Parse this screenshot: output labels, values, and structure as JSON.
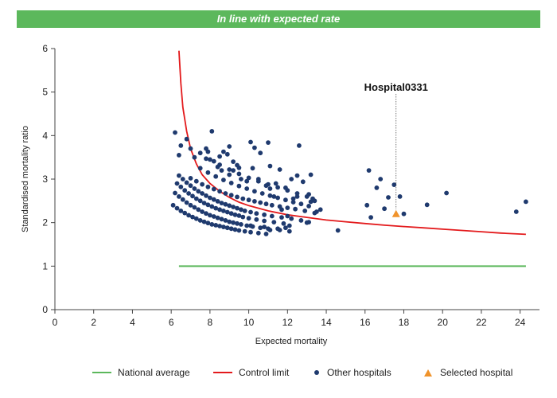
{
  "banner": {
    "text": "In line with expected rate",
    "color": "#5cb85c"
  },
  "chart_data": {
    "type": "scatter",
    "title": "",
    "xlabel": "Expected mortality",
    "ylabel": "Standardised mortality ratio",
    "xlim": [
      0,
      25
    ],
    "ylim": [
      0,
      6
    ],
    "xticks": [
      0,
      2,
      4,
      6,
      8,
      10,
      12,
      14,
      16,
      18,
      20,
      22,
      24
    ],
    "yticks": [
      0,
      1,
      2,
      3,
      4,
      5,
      6
    ],
    "grid": false,
    "legend_position": "bottom",
    "colors": {
      "national_average": "#5cb85c",
      "control_limit": "#e31a1c",
      "other_hospitals": "#1f3a6e",
      "selected_hospital": "#f0932b"
    },
    "national_average": {
      "name": "National average",
      "x": [
        6.4,
        24.3
      ],
      "y": [
        1,
        1
      ]
    },
    "control_limit": {
      "name": "Control limit",
      "points": [
        [
          6.4,
          5.95
        ],
        [
          6.5,
          5.2
        ],
        [
          6.6,
          4.65
        ],
        [
          6.8,
          4.1
        ],
        [
          7.0,
          3.7
        ],
        [
          7.3,
          3.35
        ],
        [
          7.6,
          3.1
        ],
        [
          8.0,
          2.9
        ],
        [
          8.5,
          2.72
        ],
        [
          9.0,
          2.58
        ],
        [
          9.5,
          2.47
        ],
        [
          10.0,
          2.39
        ],
        [
          11.0,
          2.27
        ],
        [
          12.0,
          2.18
        ],
        [
          13.0,
          2.12
        ],
        [
          14.0,
          2.06
        ],
        [
          15.0,
          2.02
        ],
        [
          16.0,
          1.98
        ],
        [
          17.0,
          1.94
        ],
        [
          18.0,
          1.91
        ],
        [
          19.0,
          1.88
        ],
        [
          20.0,
          1.85
        ],
        [
          21.0,
          1.82
        ],
        [
          22.0,
          1.79
        ],
        [
          23.0,
          1.76
        ],
        [
          24.3,
          1.73
        ]
      ]
    },
    "other_hospitals": {
      "name": "Other hospitals",
      "points": [
        [
          6.1,
          2.4
        ],
        [
          6.3,
          2.33
        ],
        [
          6.5,
          2.27
        ],
        [
          6.7,
          2.22
        ],
        [
          6.9,
          2.17
        ],
        [
          7.1,
          2.13
        ],
        [
          7.3,
          2.09
        ],
        [
          7.5,
          2.05
        ],
        [
          7.7,
          2.02
        ],
        [
          7.9,
          1.99
        ],
        [
          8.1,
          1.96
        ],
        [
          8.3,
          1.94
        ],
        [
          8.5,
          1.92
        ],
        [
          8.7,
          1.9
        ],
        [
          8.9,
          1.88
        ],
        [
          9.1,
          1.86
        ],
        [
          9.3,
          1.84
        ],
        [
          9.5,
          1.82
        ],
        [
          9.8,
          1.8
        ],
        [
          10.1,
          1.78
        ],
        [
          10.5,
          1.76
        ],
        [
          10.9,
          1.74
        ],
        [
          6.2,
          2.68
        ],
        [
          6.4,
          2.6
        ],
        [
          6.6,
          2.53
        ],
        [
          6.8,
          2.46
        ],
        [
          7.0,
          2.4
        ],
        [
          7.2,
          2.35
        ],
        [
          7.4,
          2.3
        ],
        [
          7.6,
          2.25
        ],
        [
          7.8,
          2.21
        ],
        [
          8.0,
          2.17
        ],
        [
          8.2,
          2.14
        ],
        [
          8.4,
          2.11
        ],
        [
          8.6,
          2.08
        ],
        [
          8.8,
          2.05
        ],
        [
          9.0,
          2.02
        ],
        [
          9.2,
          2.0
        ],
        [
          9.4,
          1.98
        ],
        [
          9.6,
          1.96
        ],
        [
          9.9,
          1.93
        ],
        [
          10.2,
          1.91
        ],
        [
          10.6,
          1.88
        ],
        [
          11.0,
          1.86
        ],
        [
          11.6,
          1.83
        ],
        [
          12.1,
          1.8
        ],
        [
          6.3,
          2.9
        ],
        [
          6.5,
          2.82
        ],
        [
          6.7,
          2.74
        ],
        [
          6.9,
          2.67
        ],
        [
          7.1,
          2.61
        ],
        [
          7.3,
          2.55
        ],
        [
          7.5,
          2.5
        ],
        [
          7.7,
          2.45
        ],
        [
          7.9,
          2.41
        ],
        [
          8.1,
          2.37
        ],
        [
          8.3,
          2.33
        ],
        [
          8.5,
          2.3
        ],
        [
          8.7,
          2.27
        ],
        [
          8.9,
          2.24
        ],
        [
          9.1,
          2.21
        ],
        [
          9.3,
          2.18
        ],
        [
          9.5,
          2.16
        ],
        [
          9.7,
          2.13
        ],
        [
          10.0,
          2.1
        ],
        [
          10.4,
          2.07
        ],
        [
          10.8,
          2.04
        ],
        [
          11.3,
          2.01
        ],
        [
          11.8,
          1.98
        ],
        [
          6.4,
          3.08
        ],
        [
          6.6,
          3.0
        ],
        [
          6.8,
          2.92
        ],
        [
          7.0,
          2.85
        ],
        [
          7.2,
          2.78
        ],
        [
          7.4,
          2.72
        ],
        [
          7.6,
          2.67
        ],
        [
          7.8,
          2.62
        ],
        [
          8.0,
          2.57
        ],
        [
          8.2,
          2.53
        ],
        [
          8.4,
          2.49
        ],
        [
          8.6,
          2.45
        ],
        [
          8.8,
          2.42
        ],
        [
          9.0,
          2.39
        ],
        [
          9.2,
          2.36
        ],
        [
          9.4,
          2.33
        ],
        [
          9.6,
          2.3
        ],
        [
          9.8,
          2.27
        ],
        [
          10.1,
          2.24
        ],
        [
          10.4,
          2.21
        ],
        [
          10.8,
          2.18
        ],
        [
          11.2,
          2.15
        ],
        [
          11.7,
          2.12
        ],
        [
          12.2,
          2.09
        ],
        [
          12.7,
          2.05
        ],
        [
          13.1,
          2.01
        ],
        [
          7.0,
          3.02
        ],
        [
          7.3,
          2.95
        ],
        [
          7.6,
          2.88
        ],
        [
          7.9,
          2.82
        ],
        [
          8.2,
          2.77
        ],
        [
          8.5,
          2.72
        ],
        [
          8.8,
          2.67
        ],
        [
          9.1,
          2.63
        ],
        [
          9.4,
          2.59
        ],
        [
          9.7,
          2.55
        ],
        [
          10.0,
          2.52
        ],
        [
          10.3,
          2.49
        ],
        [
          10.6,
          2.46
        ],
        [
          10.9,
          2.43
        ],
        [
          11.2,
          2.4
        ],
        [
          11.6,
          2.37
        ],
        [
          12.0,
          2.34
        ],
        [
          12.4,
          2.31
        ],
        [
          12.9,
          2.27
        ],
        [
          13.4,
          2.22
        ],
        [
          7.5,
          3.25
        ],
        [
          7.9,
          3.15
        ],
        [
          8.3,
          3.06
        ],
        [
          8.7,
          2.98
        ],
        [
          9.1,
          2.91
        ],
        [
          9.5,
          2.84
        ],
        [
          9.9,
          2.78
        ],
        [
          10.3,
          2.72
        ],
        [
          10.7,
          2.67
        ],
        [
          11.1,
          2.62
        ],
        [
          11.5,
          2.57
        ],
        [
          11.9,
          2.52
        ],
        [
          12.3,
          2.47
        ],
        [
          12.7,
          2.43
        ],
        [
          13.1,
          2.38
        ],
        [
          8.0,
          3.45
        ],
        [
          8.5,
          3.33
        ],
        [
          9.0,
          3.22
        ],
        [
          9.5,
          3.12
        ],
        [
          10.0,
          3.03
        ],
        [
          10.5,
          2.95
        ],
        [
          11.0,
          2.88
        ],
        [
          11.5,
          2.81
        ],
        [
          12.0,
          2.74
        ],
        [
          12.5,
          2.67
        ],
        [
          13.0,
          2.6
        ],
        [
          13.2,
          2.48
        ],
        [
          6.2,
          4.07
        ],
        [
          6.5,
          3.77
        ],
        [
          6.4,
          3.55
        ],
        [
          6.8,
          3.92
        ],
        [
          7.0,
          3.7
        ],
        [
          7.2,
          3.5
        ],
        [
          7.5,
          3.6
        ],
        [
          7.8,
          3.47
        ],
        [
          7.8,
          3.7
        ],
        [
          7.9,
          3.63
        ],
        [
          8.1,
          4.1
        ],
        [
          8.2,
          3.41
        ],
        [
          8.4,
          3.28
        ],
        [
          8.5,
          3.52
        ],
        [
          8.6,
          3.2
        ],
        [
          8.7,
          3.63
        ],
        [
          8.9,
          3.57
        ],
        [
          9.0,
          3.1
        ],
        [
          9.0,
          3.75
        ],
        [
          9.2,
          3.4
        ],
        [
          9.2,
          3.2
        ],
        [
          9.4,
          3.32
        ],
        [
          9.5,
          3.26
        ],
        [
          9.6,
          3.0
        ],
        [
          9.9,
          2.95
        ],
        [
          10.1,
          3.85
        ],
        [
          10.3,
          3.72
        ],
        [
          10.6,
          3.6
        ],
        [
          11.0,
          3.84
        ],
        [
          11.1,
          3.3
        ],
        [
          11.4,
          2.9
        ],
        [
          11.6,
          3.22
        ],
        [
          11.9,
          2.8
        ],
        [
          10.2,
          3.25
        ],
        [
          10.5,
          3.0
        ],
        [
          10.9,
          2.85
        ],
        [
          11.1,
          2.78
        ],
        [
          11.3,
          2.6
        ],
        [
          11.7,
          2.3
        ],
        [
          12.0,
          2.15
        ],
        [
          12.3,
          2.55
        ],
        [
          12.5,
          2.6
        ],
        [
          12.6,
          3.77
        ],
        [
          12.8,
          2.94
        ],
        [
          12.5,
          3.08
        ],
        [
          12.2,
          3.0
        ],
        [
          13.1,
          2.65
        ],
        [
          13.2,
          3.1
        ],
        [
          13.3,
          2.55
        ],
        [
          13.4,
          2.5
        ],
        [
          13.0,
          2.0
        ],
        [
          13.5,
          2.25
        ],
        [
          13.7,
          2.3
        ],
        [
          11.5,
          1.86
        ],
        [
          11.1,
          1.83
        ],
        [
          11.9,
          1.88
        ],
        [
          12.1,
          1.93
        ],
        [
          10.8,
          1.9
        ],
        [
          10.1,
          1.93
        ],
        [
          14.6,
          1.82
        ],
        [
          16.1,
          2.4
        ],
        [
          16.2,
          3.2
        ],
        [
          16.3,
          2.12
        ],
        [
          16.6,
          2.8
        ],
        [
          16.8,
          3.0
        ],
        [
          17.0,
          2.32
        ],
        [
          17.2,
          2.58
        ],
        [
          17.5,
          2.87
        ],
        [
          17.8,
          2.6
        ],
        [
          18.0,
          2.2
        ],
        [
          19.2,
          2.41
        ],
        [
          20.2,
          2.68
        ],
        [
          23.8,
          2.25
        ],
        [
          24.3,
          2.48
        ]
      ]
    },
    "selected_hospital": {
      "name": "Selected hospital",
      "label": "Hospital0331",
      "x": 17.6,
      "y": 2.2
    }
  }
}
